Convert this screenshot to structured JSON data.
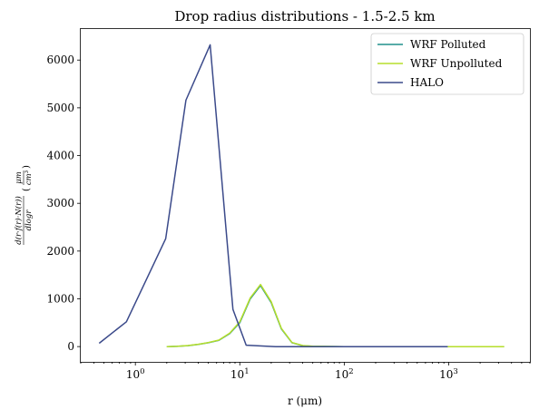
{
  "chart_data": {
    "type": "line",
    "title": "Drop radius distributions - 1.5-2.5 km",
    "xlabel": "r (μm)",
    "ylabel": {
      "numerator": "d(r·f(r)·N(r))",
      "denominator": "dlogr",
      "unit_numerator": "μm",
      "unit_denominator": "cm³"
    },
    "x_scale": "log",
    "xlim": [
      0.3,
      6000
    ],
    "ylim": [
      -320,
      6650
    ],
    "x_ticks": [
      {
        "value": 1,
        "base": "10",
        "exp": "0"
      },
      {
        "value": 10,
        "base": "10",
        "exp": "1"
      },
      {
        "value": 100,
        "base": "10",
        "exp": "2"
      },
      {
        "value": 1000,
        "base": "10",
        "exp": "3"
      }
    ],
    "y_ticks": [
      0,
      1000,
      2000,
      3000,
      4000,
      5000,
      6000
    ],
    "y_tick_labels": [
      "0",
      "1000",
      "2000",
      "3000",
      "4000",
      "5000",
      "6000"
    ],
    "grid": false,
    "legend_position": "top-right",
    "series": [
      {
        "name": "WRF Polluted",
        "color": "#21918c",
        "x": [
          2,
          2.5,
          3.2,
          4,
          5,
          6.3,
          8,
          10,
          12.6,
          15.8,
          20,
          25,
          31.6,
          40,
          50,
          100,
          200,
          500,
          1000,
          2000,
          3400
        ],
        "y": [
          0,
          5,
          20,
          45,
          80,
          130,
          270,
          500,
          1000,
          1280,
          920,
          370,
          80,
          20,
          5,
          0,
          0,
          0,
          0,
          0,
          0
        ]
      },
      {
        "name": "WRF Unpolluted",
        "color": "#b5de2b",
        "x": [
          2,
          2.5,
          3.2,
          4,
          5,
          6.3,
          8,
          10,
          12.6,
          15.8,
          20,
          25,
          31.6,
          40,
          50,
          100,
          200,
          500,
          1000,
          2000,
          3400
        ],
        "y": [
          0,
          5,
          22,
          48,
          85,
          135,
          280,
          520,
          1020,
          1300,
          940,
          380,
          85,
          22,
          6,
          0,
          0,
          0,
          0,
          0,
          0
        ]
      },
      {
        "name": "HALO",
        "color": "#3b4a8a",
        "x": [
          0.45,
          0.82,
          1.95,
          3.05,
          5.2,
          8.6,
          11.5,
          22,
          45,
          100,
          300,
          980
        ],
        "y": [
          70,
          520,
          2260,
          5160,
          6320,
          780,
          30,
          0,
          0,
          0,
          0,
          0
        ]
      }
    ]
  }
}
